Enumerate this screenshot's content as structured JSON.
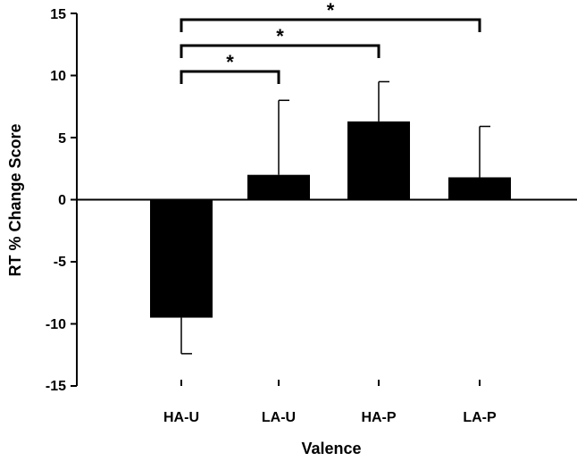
{
  "chart_data": {
    "type": "bar",
    "xlabel": "Valence",
    "ylabel": "RT % Change Score",
    "categories": [
      "HA-U",
      "LA-U",
      "HA-P",
      "LA-P"
    ],
    "values": [
      -9.5,
      2.0,
      6.3,
      1.8
    ],
    "error_bars": [
      {
        "direction": "down",
        "end": -12.4
      },
      {
        "direction": "up",
        "end": 8.0
      },
      {
        "direction": "up",
        "end": 9.5
      },
      {
        "direction": "up",
        "end": 5.9
      }
    ],
    "ylim": [
      -15,
      15
    ],
    "yticks": [
      "15",
      "10",
      "5",
      "0",
      "-5",
      "-10",
      "-15"
    ],
    "grid": false,
    "legend": "none",
    "bar_color": "#000000",
    "significance": [
      {
        "from": "HA-U",
        "to": "LA-U",
        "label": "*"
      },
      {
        "from": "HA-U",
        "to": "HA-P",
        "label": "*"
      },
      {
        "from": "HA-U",
        "to": "LA-P",
        "label": "*"
      }
    ]
  }
}
